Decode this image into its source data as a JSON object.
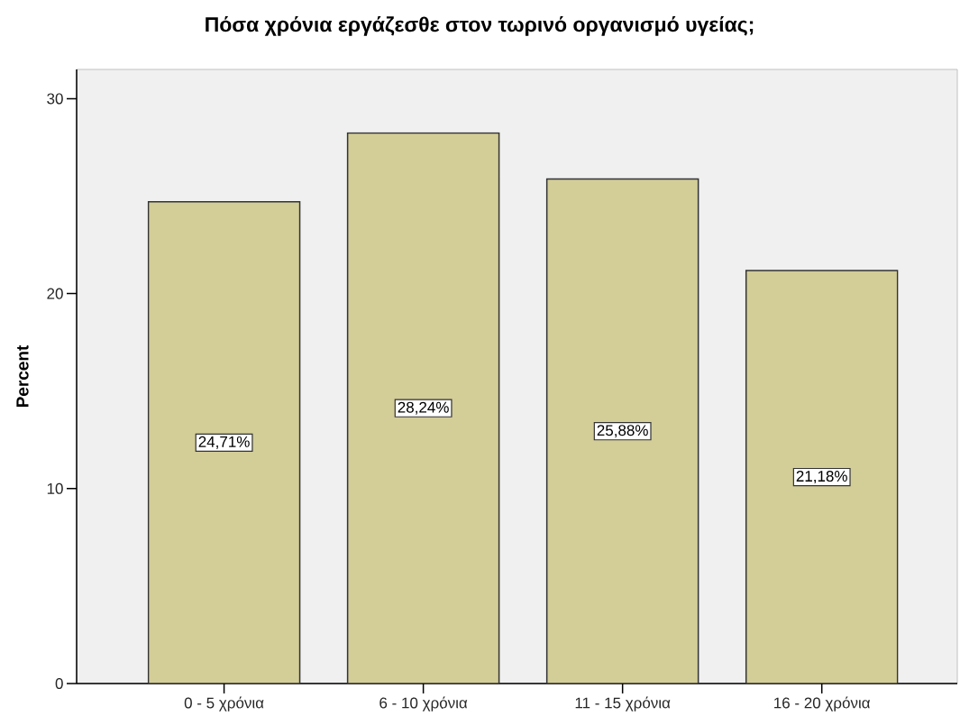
{
  "chart_data": {
    "type": "bar",
    "title": "Πόσα χρόνια εργάζεσθε στον τωρινό οργανισμό υγείας;",
    "ylabel": "Percent",
    "categories": [
      "0 - 5 χρόνια",
      "6 - 10 χρόνια",
      "11 - 15 χρόνια",
      "16 - 20 χρόνια"
    ],
    "values": [
      24.71,
      28.24,
      25.88,
      21.18
    ],
    "value_labels": [
      "24,71%",
      "28,24%",
      "25,88%",
      "21,18%"
    ],
    "color": "#d3cd98",
    "ylim": [
      0,
      31.5
    ],
    "yticks": [
      0,
      10,
      20,
      30
    ]
  }
}
